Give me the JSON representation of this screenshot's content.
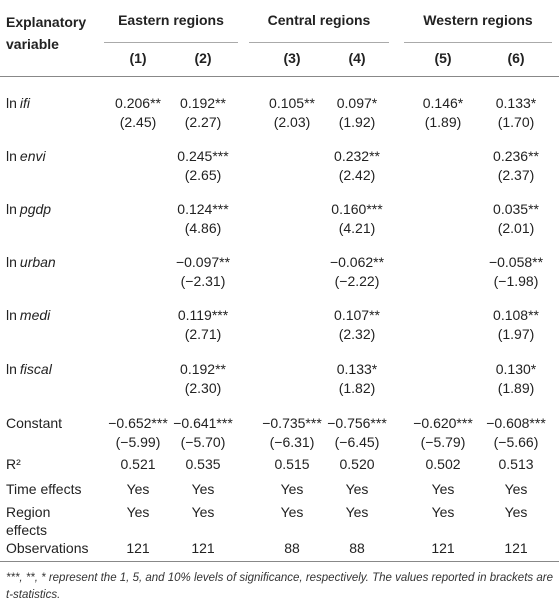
{
  "table": {
    "header": {
      "label": "Explanatory variable",
      "groups": [
        "Eastern regions",
        "Central regions",
        "Western regions"
      ],
      "columns": [
        "(1)",
        "(2)",
        "(3)",
        "(4)",
        "(5)",
        "(6)"
      ]
    },
    "rows": [
      {
        "prefix": "ln",
        "name": "ifi",
        "cells": [
          [
            "0.206**",
            "(2.45)"
          ],
          [
            "0.192**",
            "(2.27)"
          ],
          [
            "0.105**",
            "(2.03)"
          ],
          [
            "0.097*",
            "(1.92)"
          ],
          [
            "0.146*",
            "(1.89)"
          ],
          [
            "0.133*",
            "(1.70)"
          ]
        ]
      },
      {
        "prefix": "ln",
        "name": "envi",
        "cells": [
          null,
          [
            "0.245***",
            "(2.65)"
          ],
          null,
          [
            "0.232**",
            "(2.42)"
          ],
          null,
          [
            "0.236**",
            "(2.37)"
          ]
        ]
      },
      {
        "prefix": "ln",
        "name": "pgdp",
        "cells": [
          null,
          [
            "0.124***",
            "(4.86)"
          ],
          null,
          [
            "0.160***",
            "(4.21)"
          ],
          null,
          [
            "0.035**",
            "(2.01)"
          ]
        ]
      },
      {
        "prefix": "ln",
        "name": "urban",
        "cells": [
          null,
          [
            "−0.097**",
            "(−2.31)"
          ],
          null,
          [
            "−0.062**",
            "(−2.22)"
          ],
          null,
          [
            "−0.058**",
            "(−1.98)"
          ]
        ]
      },
      {
        "prefix": "ln",
        "name": "medi",
        "cells": [
          null,
          [
            "0.119***",
            "(2.71)"
          ],
          null,
          [
            "0.107**",
            "(2.32)"
          ],
          null,
          [
            "0.108**",
            "(1.97)"
          ]
        ]
      },
      {
        "prefix": "ln",
        "name": "fiscal",
        "cells": [
          null,
          [
            "0.192**",
            "(2.30)"
          ],
          null,
          [
            "0.133*",
            "(1.82)"
          ],
          null,
          [
            "0.130*",
            "(1.89)"
          ]
        ]
      },
      {
        "label": "Constant",
        "cells": [
          [
            "−0.652***",
            "(−5.99)"
          ],
          [
            "−0.641***",
            "(−5.70)"
          ],
          [
            "−0.735***",
            "(−6.31)"
          ],
          [
            "−0.756***",
            "(−6.45)"
          ],
          [
            "−0.620***",
            "(−5.79)"
          ],
          [
            "−0.608***",
            "(−5.66)"
          ]
        ]
      },
      {
        "label": "R²",
        "cells": [
          "0.521",
          "0.535",
          "0.515",
          "0.520",
          "0.502",
          "0.513"
        ]
      },
      {
        "label": "Time effects",
        "cells": [
          "Yes",
          "Yes",
          "Yes",
          "Yes",
          "Yes",
          "Yes"
        ]
      },
      {
        "label": "Region effects",
        "cells": [
          "Yes",
          "Yes",
          "Yes",
          "Yes",
          "Yes",
          "Yes"
        ]
      },
      {
        "label": "Observations",
        "cells": [
          "121",
          "121",
          "88",
          "88",
          "121",
          "121"
        ]
      }
    ],
    "note": "***, **, * represent the 1, 5, and 10% levels of significance, respectively. The values reported in brackets are t-statistics."
  }
}
